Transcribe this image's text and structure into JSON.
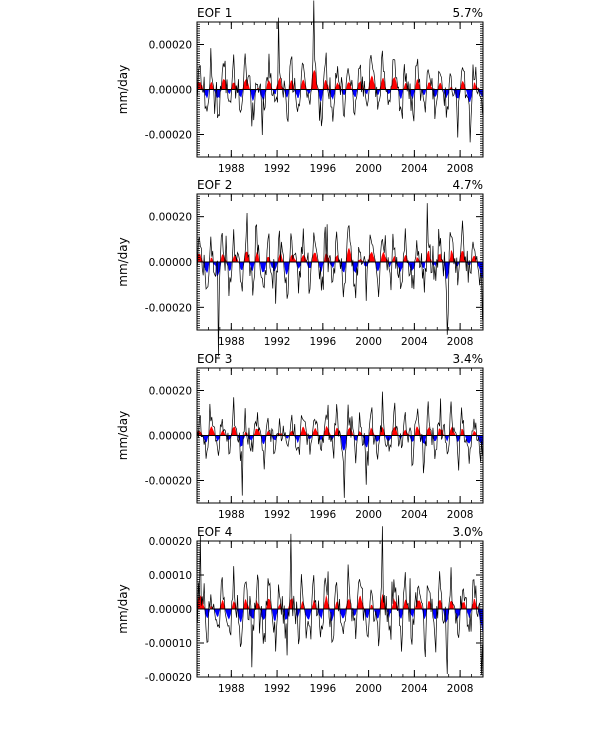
{
  "chart_data": [
    {
      "type": "area",
      "title_left": "EOF 1",
      "title_right": "5.7%",
      "ylabel": "mm/day",
      "ylim": [
        -0.0003,
        0.0003
      ],
      "yticks": [
        -0.0002,
        0,
        0.0002
      ],
      "ytick_labels": [
        "-0.00020",
        "0.00000",
        "0.00020"
      ],
      "xlim": [
        1985,
        2010
      ],
      "xticks": [
        1988,
        1992,
        1996,
        2000,
        2004,
        2008
      ],
      "series": [
        {
          "values": [],
          "pos_color": "#ff0000",
          "neg_color": "#0000ff"
        }
      ],
      "seed": 11,
      "amp": 8.5e-05
    },
    {
      "type": "area",
      "title_left": "EOF 2",
      "title_right": "4.7%",
      "ylabel": "mm/day",
      "ylim": [
        -0.0003,
        0.0003
      ],
      "yticks": [
        -0.0002,
        0,
        0.0002
      ],
      "ytick_labels": [
        "-0.00020",
        "0.00000",
        "0.00020"
      ],
      "xlim": [
        1985,
        2010
      ],
      "xticks": [
        1988,
        1992,
        1996,
        2000,
        2004,
        2008
      ],
      "series": [
        {
          "values": [],
          "pos_color": "#ff0000",
          "neg_color": "#0000ff"
        }
      ],
      "seed": 23,
      "amp": 8e-05
    },
    {
      "type": "area",
      "title_left": "EOF 3",
      "title_right": "3.4%",
      "ylabel": "mm/day",
      "ylim": [
        -0.0003,
        0.0003
      ],
      "yticks": [
        -0.0002,
        0,
        0.0002
      ],
      "ytick_labels": [
        "-0.00020",
        "0.00000",
        "0.00020"
      ],
      "xlim": [
        1985,
        2010
      ],
      "xticks": [
        1988,
        1992,
        1996,
        2000,
        2004,
        2008
      ],
      "series": [
        {
          "values": [],
          "pos_color": "#ff0000",
          "neg_color": "#0000ff"
        }
      ],
      "seed": 37,
      "amp": 7e-05
    },
    {
      "type": "area",
      "title_left": "EOF 4",
      "title_right": "3.0%",
      "ylabel": "mm/day",
      "ylim": [
        -0.0002,
        0.0002
      ],
      "yticks": [
        -0.0002,
        -0.0001,
        0,
        0.0001,
        0.0002
      ],
      "ytick_labels": [
        "-0.00020",
        "-0.00010",
        "0.00000",
        "0.00010",
        "0.00020"
      ],
      "xlim": [
        1985,
        2010
      ],
      "xticks": [
        1988,
        1992,
        1996,
        2000,
        2004,
        2008
      ],
      "series": [
        {
          "values": [],
          "pos_color": "#ff0000",
          "neg_color": "#0000ff"
        }
      ],
      "seed": 53,
      "amp": 6e-05
    }
  ]
}
